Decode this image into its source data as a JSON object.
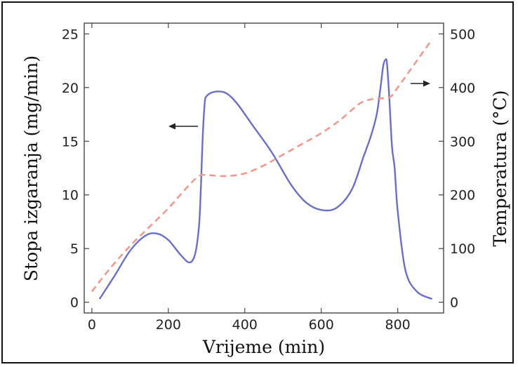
{
  "chart_data": {
    "type": "line",
    "xlabel": "Vrijeme (min)",
    "ylabel_left": "Stopa izgaranja (mg/min)",
    "ylabel_right": "Temperatura (°C)",
    "xlim": [
      -20,
      920
    ],
    "ylim_left": [
      -1,
      26
    ],
    "ylim_right": [
      -20,
      520
    ],
    "x_ticks": [
      0,
      200,
      400,
      600,
      800
    ],
    "y_left_ticks": [
      0,
      5,
      10,
      15,
      20,
      25
    ],
    "y_right_ticks": [
      0,
      100,
      200,
      300,
      400,
      500
    ],
    "grid": false,
    "series": [
      {
        "axis": "left",
        "style": "solid",
        "color": "#6b6fc4",
        "x": [
          20,
          60,
          100,
          140,
          170,
          200,
          230,
          255,
          270,
          280,
          285,
          290,
          295,
          300,
          320,
          350,
          380,
          420,
          470,
          520,
          560,
          600,
          640,
          680,
          710,
          730,
          745,
          755,
          762,
          768,
          772,
          778,
          785,
          792,
          800,
          820,
          850,
          890
        ],
        "y": [
          0.3,
          2.5,
          4.8,
          6.2,
          6.4,
          5.8,
          4.5,
          3.7,
          4.5,
          7.0,
          10.5,
          15.5,
          18.5,
          19.2,
          19.6,
          19.5,
          18.5,
          16.5,
          14.0,
          11.0,
          9.3,
          8.6,
          8.8,
          10.5,
          13.5,
          15.5,
          17.5,
          20.0,
          22.0,
          22.6,
          22.2,
          19.0,
          14.5,
          12.5,
          8.5,
          3.0,
          1.0,
          0.3
        ]
      },
      {
        "axis": "right",
        "style": "dashed",
        "color": "#f0998e",
        "x": [
          0,
          50,
          100,
          150,
          200,
          250,
          280,
          300,
          350,
          400,
          450,
          500,
          550,
          600,
          650,
          700,
          730,
          760,
          780,
          800,
          850,
          890
        ],
        "y": [
          20,
          65,
          105,
          140,
          175,
          215,
          235,
          237,
          235,
          240,
          255,
          275,
          295,
          315,
          340,
          370,
          378,
          380,
          382,
          400,
          450,
          490
        ]
      }
    ]
  }
}
